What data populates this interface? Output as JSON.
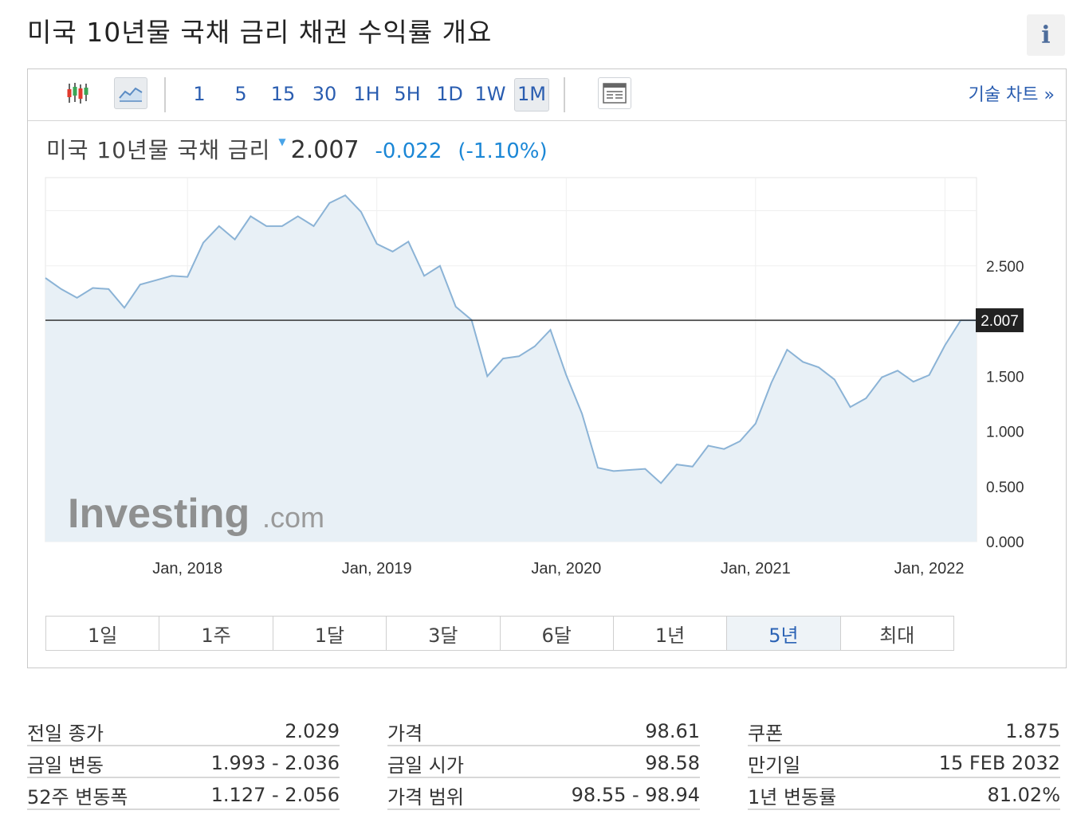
{
  "page": {
    "title": "미국 10년물 국채 금리  채권 수익률 개요",
    "info_icon": "info-icon"
  },
  "toolbar": {
    "chart_type_icons": [
      "candlestick-icon",
      "area-chart-icon"
    ],
    "intervals": [
      "1",
      "5",
      "15",
      "30",
      "1H",
      "5H",
      "1D",
      "1W",
      "1M"
    ],
    "active_interval": "1M",
    "table_icon": "table-view-icon",
    "tech_chart_link": "기술 차트 »"
  },
  "quote": {
    "name": "미국 10년물 국채 금리",
    "direction_icon": "down-triangle-icon",
    "last": "2.007",
    "change": "-0.022",
    "change_pct": "(-1.10%)",
    "color_down": "#1b87d6"
  },
  "chart_data": {
    "type": "area",
    "title": "",
    "xlabel": "",
    "ylabel": "",
    "x_tick_labels": [
      "Jan, 2018",
      "Jan, 2019",
      "Jan, 2020",
      "Jan, 2021",
      "Jan, 2022"
    ],
    "y_tick_labels": [
      "0.000",
      "0.500",
      "1.000",
      "1.500",
      "2.500"
    ],
    "ylim": [
      0,
      3.3
    ],
    "xlim": [
      "2017-04",
      "2022-03"
    ],
    "current_value_label": "2.007",
    "current_value": 2.007,
    "grid": true,
    "watermark": "Investing.com",
    "line_color": "#8bb3d6",
    "fill_color": "#e8f0f6",
    "series": [
      {
        "x": [
          "2017-04",
          "2017-05",
          "2017-06",
          "2017-07",
          "2017-08",
          "2017-09",
          "2017-10",
          "2017-11",
          "2017-12",
          "2018-01",
          "2018-02",
          "2018-03",
          "2018-04",
          "2018-05",
          "2018-06",
          "2018-07",
          "2018-08",
          "2018-09",
          "2018-10",
          "2018-11",
          "2018-12",
          "2019-01",
          "2019-02",
          "2019-03",
          "2019-04",
          "2019-05",
          "2019-06",
          "2019-07",
          "2019-08",
          "2019-09",
          "2019-10",
          "2019-11",
          "2019-12",
          "2020-01",
          "2020-02",
          "2020-03",
          "2020-04",
          "2020-05",
          "2020-06",
          "2020-07",
          "2020-08",
          "2020-09",
          "2020-10",
          "2020-11",
          "2020-12",
          "2021-01",
          "2021-02",
          "2021-03",
          "2021-04",
          "2021-05",
          "2021-06",
          "2021-07",
          "2021-08",
          "2021-09",
          "2021-10",
          "2021-11",
          "2021-12",
          "2022-01",
          "2022-02",
          "2022-03"
        ],
        "y": [
          2.39,
          2.29,
          2.21,
          2.3,
          2.29,
          2.12,
          2.33,
          2.37,
          2.41,
          2.4,
          2.71,
          2.86,
          2.74,
          2.95,
          2.86,
          2.86,
          2.95,
          2.86,
          3.07,
          3.14,
          2.99,
          2.7,
          2.63,
          2.72,
          2.41,
          2.5,
          2.13,
          2.01,
          1.5,
          1.66,
          1.68,
          1.77,
          1.92,
          1.51,
          1.16,
          0.67,
          0.64,
          0.65,
          0.66,
          0.53,
          0.7,
          0.68,
          0.87,
          0.84,
          0.91,
          1.07,
          1.44,
          1.74,
          1.63,
          1.58,
          1.47,
          1.22,
          1.3,
          1.49,
          1.55,
          1.45,
          1.51,
          1.78,
          2.007,
          2.007
        ]
      }
    ]
  },
  "ranges": {
    "items": [
      "1일",
      "1주",
      "1달",
      "3달",
      "6달",
      "1년",
      "5년",
      "최대"
    ],
    "active": "5년"
  },
  "stats": {
    "col1": [
      {
        "label": "전일 종가",
        "value": "2.029"
      },
      {
        "label": "금일 변동",
        "value": "1.993 - 2.036"
      },
      {
        "label": "52주 변동폭",
        "value": "1.127 - 2.056"
      }
    ],
    "col2": [
      {
        "label": "가격",
        "value": "98.61"
      },
      {
        "label": "금일 시가",
        "value": "98.58"
      },
      {
        "label": "가격 범위",
        "value": "98.55 - 98.94"
      }
    ],
    "col3": [
      {
        "label": "쿠폰",
        "value": "1.875"
      },
      {
        "label": "만기일",
        "value": "15 FEB 2032"
      },
      {
        "label": "1년 변동률",
        "value": "81.02%"
      }
    ]
  }
}
